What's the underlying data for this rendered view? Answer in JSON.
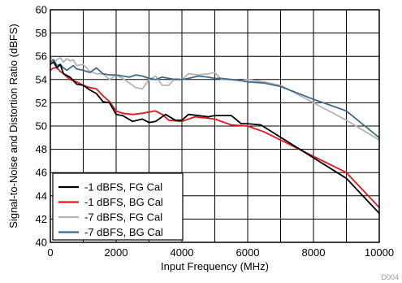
{
  "chart_data": {
    "type": "line",
    "xlabel": "Input Frequency (MHz)",
    "ylabel": "Signal-to-Noise and Distortion Ratio (dBFS)",
    "xlim": [
      0,
      10000
    ],
    "ylim": [
      40,
      60
    ],
    "x_ticks": [
      "0",
      "2000",
      "4000",
      "6000",
      "8000",
      "10000"
    ],
    "y_ticks": [
      "40",
      "42",
      "44",
      "46",
      "48",
      "50",
      "52",
      "54",
      "56",
      "58",
      "60"
    ],
    "grid": true,
    "legend_position": "bottom-left",
    "figure_id": "D004",
    "series": [
      {
        "name": "-1 dBFS, FG Cal",
        "color": "#000000",
        "x": [
          0,
          100,
          200,
          300,
          400,
          600,
          800,
          1000,
          1200,
          1400,
          1600,
          1800,
          2000,
          2200,
          2500,
          2800,
          3000,
          3200,
          3500,
          3800,
          4000,
          4200,
          4500,
          4800,
          5000,
          5200,
          5500,
          5800,
          6000,
          6400,
          9000,
          10000
        ],
        "y": [
          55.3,
          55.5,
          55.0,
          55.3,
          54.5,
          54.2,
          53.6,
          53.5,
          53.1,
          52.8,
          52.1,
          52.0,
          51.0,
          50.9,
          50.4,
          50.6,
          50.3,
          50.4,
          51.0,
          50.5,
          50.5,
          51.0,
          50.9,
          50.8,
          50.9,
          50.9,
          50.9,
          50.2,
          50.2,
          50.1,
          45.5,
          42.5
        ]
      },
      {
        "name": "-1 dBFS, BG Cal",
        "color": "#e8141d",
        "x": [
          0,
          100,
          200,
          300,
          400,
          600,
          800,
          1000,
          1200,
          1400,
          1600,
          1800,
          2000,
          2200,
          2500,
          2800,
          3000,
          3200,
          3400,
          3600,
          4000,
          4400,
          4700,
          5000,
          5500,
          6000,
          6500,
          7000,
          9000,
          10000
        ],
        "y": [
          54.8,
          55.0,
          55.0,
          54.7,
          54.5,
          54.0,
          53.8,
          53.5,
          53.3,
          53.2,
          52.6,
          52.1,
          51.3,
          51.1,
          51.0,
          51.1,
          51.2,
          51.3,
          51.0,
          50.5,
          50.4,
          50.8,
          50.7,
          50.6,
          50.1,
          50.0,
          49.5,
          48.8,
          46.0,
          43.0
        ]
      },
      {
        "name": "-7 dBFS, FG Cal",
        "color": "#b4b4b4",
        "x": [
          0,
          100,
          200,
          300,
          400,
          500,
          600,
          700,
          800,
          1000,
          1200,
          1400,
          1600,
          1800,
          2000,
          2200,
          2400,
          2500,
          2600,
          2800,
          3000,
          3200,
          3400,
          3600,
          3800,
          4000,
          4200,
          4500,
          4800,
          5000,
          5200,
          5500,
          5800,
          6000,
          6500,
          7000,
          8000,
          9000,
          10000
        ],
        "y": [
          56.0,
          55.5,
          55.7,
          55.9,
          55.5,
          55.8,
          55.6,
          55.7,
          55.2,
          55.3,
          54.7,
          54.5,
          54.5,
          54.0,
          54.4,
          54.1,
          53.7,
          53.5,
          53.3,
          53.2,
          54.0,
          54.3,
          53.5,
          53.5,
          54.1,
          54.0,
          54.5,
          54.4,
          54.5,
          54.6,
          54.0,
          54.0,
          53.9,
          54.0,
          53.8,
          53.5,
          52.0,
          50.5,
          48.8
        ]
      },
      {
        "name": "-7 dBFS, BG Cal",
        "color": "#3f6b86",
        "x": [
          0,
          100,
          200,
          300,
          400,
          500,
          600,
          700,
          800,
          1000,
          1200,
          1400,
          1600,
          1800,
          2000,
          2200,
          2400,
          2600,
          2800,
          3000,
          3200,
          3400,
          3600,
          3800,
          4000,
          4200,
          4500,
          4800,
          5000,
          5200,
          5500,
          5800,
          6000,
          6500,
          7000,
          8000,
          9000,
          10000
        ],
        "y": [
          55.5,
          55.7,
          55.2,
          55.3,
          55.0,
          54.8,
          55.0,
          55.2,
          54.9,
          54.8,
          54.6,
          55.0,
          54.5,
          54.4,
          54.4,
          54.3,
          54.2,
          54.4,
          54.3,
          54.1,
          54.0,
          54.2,
          54.1,
          54.0,
          54.0,
          54.1,
          54.3,
          54.2,
          54.1,
          54.1,
          54.0,
          53.9,
          53.8,
          53.7,
          53.4,
          52.3,
          51.3,
          49.0
        ]
      }
    ]
  }
}
